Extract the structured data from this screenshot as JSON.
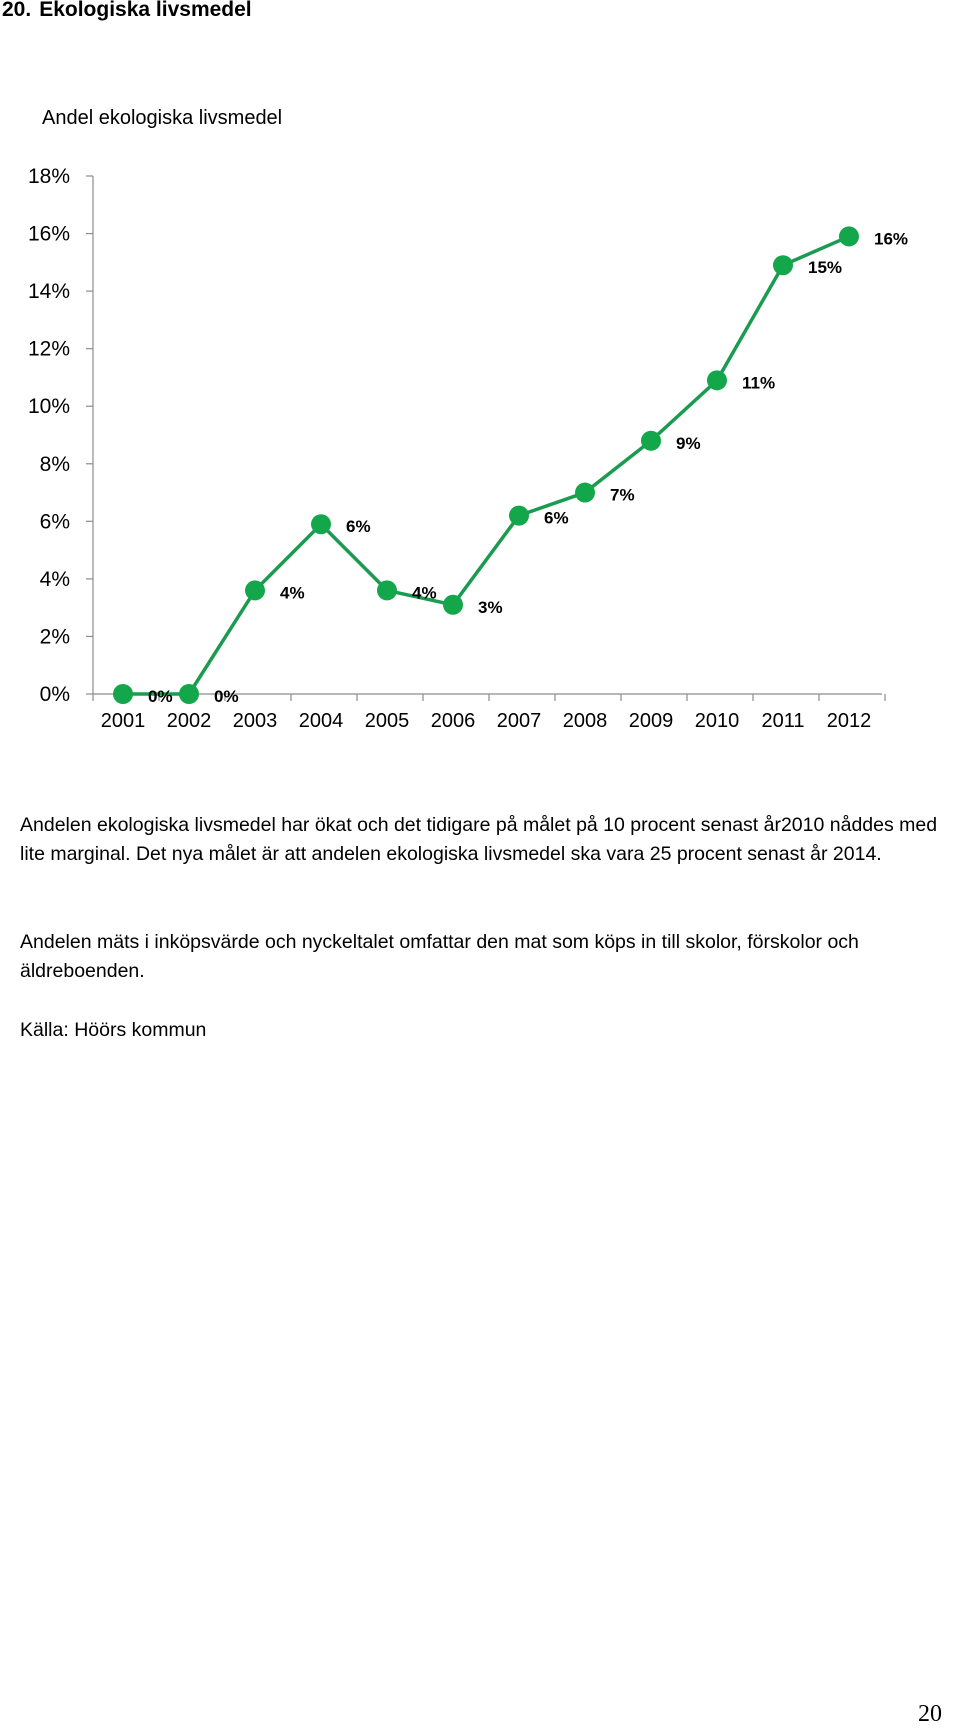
{
  "document": {
    "section_number": "20.",
    "section_title": "Ekologiska livsmedel",
    "paragraphs": [
      "Andelen ekologiska livsmedel har ökat och det tidigare på målet på 10 procent  senast år2010 nåddes med lite marginal. Det nya målet är att andelen ekologiska livsmedel ska vara 25 procent senast år 2014.",
      "Andelen mäts i inköpsvärde  och nyckeltalet omfattar den mat som köps in till skolor, förskolor och äldreboenden.",
      "Källa: Höörs kommun"
    ],
    "page_number": "20"
  },
  "chart_data": {
    "type": "line",
    "title": "Andel ekologiska livsmedel",
    "xlabel": "",
    "ylabel": "",
    "categories": [
      "2001",
      "2002",
      "2003",
      "2004",
      "2005",
      "2006",
      "2007",
      "2008",
      "2009",
      "2010",
      "2011",
      "2012"
    ],
    "series": [
      {
        "values": [
          0,
          0,
          3.6,
          5.9,
          3.6,
          3.1,
          6.2,
          7.0,
          8.8,
          10.9,
          14.9,
          15.9
        ],
        "data_labels": [
          "0%",
          "0%",
          "4%",
          "6%",
          "4%",
          "3%",
          "6%",
          "7%",
          "9%",
          "11%",
          "15%",
          "16%"
        ]
      }
    ],
    "ylim": [
      0,
      18
    ],
    "yticks": [
      0,
      2,
      4,
      6,
      8,
      10,
      12,
      14,
      16,
      18
    ],
    "ytick_labels": [
      "0%",
      "2%",
      "4%",
      "6%",
      "8%",
      "10%",
      "12%",
      "14%",
      "16%",
      "18%"
    ],
    "grid": false,
    "legend": "none",
    "colors": {
      "line": "#1a9b50",
      "marker": "#14a64a",
      "axis": "#8c8c8c"
    }
  }
}
